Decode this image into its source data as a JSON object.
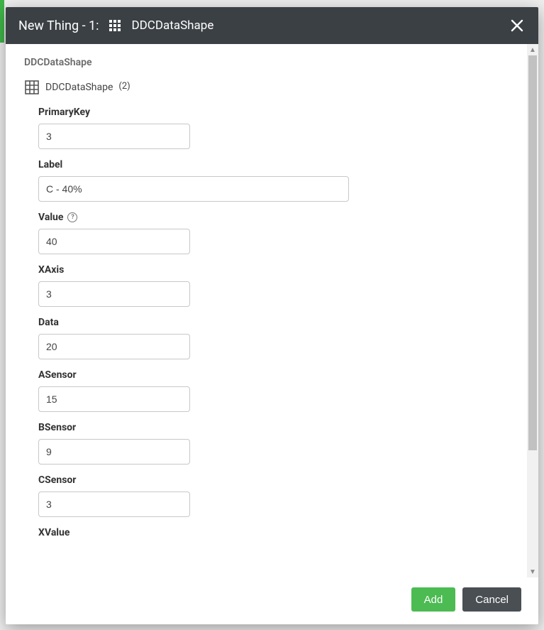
{
  "colors": {
    "header_bg": "#3b4045",
    "accent_green": "#4cbb52",
    "cancel_bg": "#4a4f54",
    "input_border": "#c8c8c8",
    "text_primary": "#333333",
    "text_secondary": "#6a6a6a"
  },
  "header": {
    "title_prefix": "New Thing - 1:",
    "shape_name": "DDCDataShape"
  },
  "body": {
    "shape_heading": "DDCDataShape",
    "shape_line": {
      "name": "DDCDataShape",
      "count_label": "(2)"
    },
    "fields": [
      {
        "key": "primaryKey",
        "label": "PrimaryKey",
        "value": "3",
        "width": "short",
        "help": false
      },
      {
        "key": "label",
        "label": "Label",
        "value": "C - 40%",
        "width": "long",
        "help": false
      },
      {
        "key": "value",
        "label": "Value",
        "value": "40",
        "width": "short",
        "help": true
      },
      {
        "key": "xaxis",
        "label": "XAxis",
        "value": "3",
        "width": "short",
        "help": false
      },
      {
        "key": "data",
        "label": "Data",
        "value": "20",
        "width": "short",
        "help": false
      },
      {
        "key": "asensor",
        "label": "ASensor",
        "value": "15",
        "width": "short",
        "help": false
      },
      {
        "key": "bsensor",
        "label": "BSensor",
        "value": "9",
        "width": "short",
        "help": false
      },
      {
        "key": "csensor",
        "label": "CSensor",
        "value": "3",
        "width": "short",
        "help": false
      },
      {
        "key": "xvalue",
        "label": "XValue",
        "value": "",
        "width": "none",
        "help": false
      }
    ]
  },
  "footer": {
    "add_label": "Add",
    "cancel_label": "Cancel"
  }
}
